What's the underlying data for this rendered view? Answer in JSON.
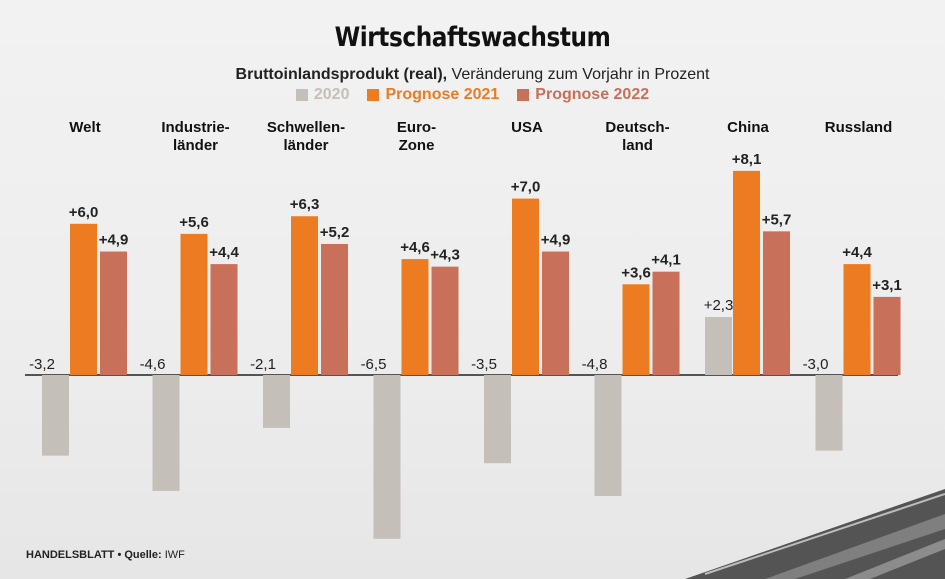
{
  "title": "Wirtschaftswachstum",
  "subtitle_bold": "Bruttoinlandsprodukt (real),",
  "subtitle_rest": " Veränderung zum Vorjahr in Prozent",
  "footer_source": "HANDELSBLATT • Quelle:",
  "footer_name": " IWF",
  "colors": {
    "s2020": "#c4bfb8",
    "s2021": "#ec7b22",
    "s2022": "#c8705a"
  },
  "chart_data": {
    "type": "bar",
    "categories": [
      "Welt",
      "Industrie-\nländer",
      "Schwellen-\nländer",
      "Euro-\nZone",
      "USA",
      "Deutsch-\nland",
      "China",
      "Russland"
    ],
    "series": [
      {
        "name": "2020",
        "values": [
          -3.2,
          -4.6,
          -2.1,
          -6.5,
          -3.5,
          -4.8,
          2.3,
          -3.0
        ],
        "labels": [
          "-3,2",
          "-4,6",
          "-2,1",
          "-6,5",
          "-3,5",
          "-4,8",
          "+2,3",
          "-3,0"
        ]
      },
      {
        "name": "Prognose 2021",
        "values": [
          6.0,
          5.6,
          6.3,
          4.6,
          7.0,
          3.6,
          8.1,
          4.4
        ],
        "labels": [
          "+6,0",
          "+5,6",
          "+6,3",
          "+4,6",
          "+7,0",
          "+3,6",
          "+8,1",
          "+4,4"
        ]
      },
      {
        "name": "Prognose 2022",
        "values": [
          4.9,
          4.4,
          5.2,
          4.3,
          4.9,
          4.1,
          5.7,
          3.1
        ],
        "labels": [
          "+4,9",
          "+4,4",
          "+5,2",
          "+4,3",
          "+4,9",
          "+4,1",
          "+5,7",
          "+3,1"
        ]
      }
    ],
    "title": "Wirtschaftswachstum",
    "ylabel": "",
    "ylim": [
      -7,
      9
    ],
    "grid": false,
    "legend": "top-center"
  }
}
